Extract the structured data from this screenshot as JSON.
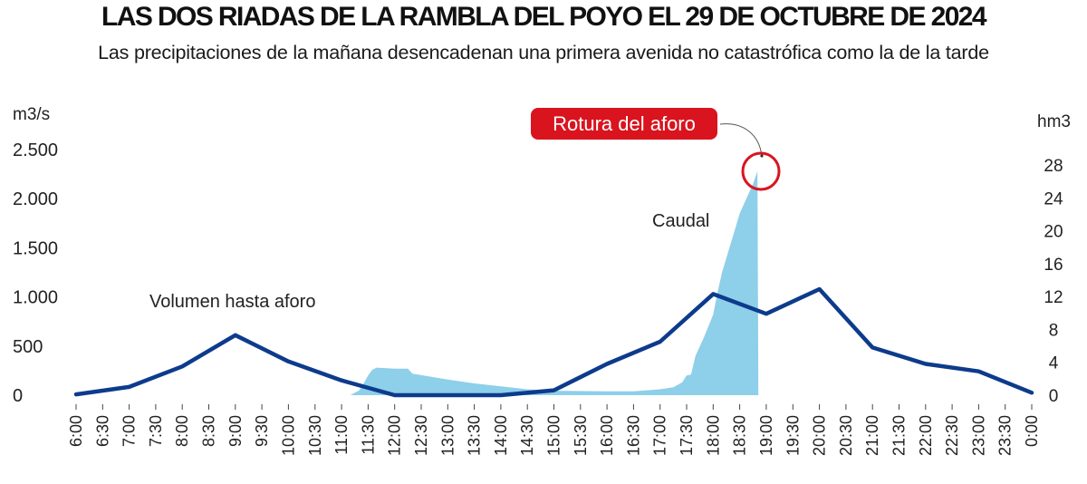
{
  "title": "LAS DOS RIADAS DE LA RAMBLA DEL POYO EL 29 DE OCTUBRE DE 2024",
  "subtitle": "Las precipitaciones de la mañana desencadenan una primera avenida no catastrófica como la de la tarde",
  "colors": {
    "caudal": "#8ecfe9",
    "volumen": "#0d3b8c",
    "alert": "#d9141e",
    "text": "#222222"
  },
  "chart_data": {
    "type": "area",
    "x_ticks": [
      "6:00",
      "6:30",
      "7:00",
      "7:30",
      "8:00",
      "8:30",
      "9:00",
      "9:30",
      "10:00",
      "10:30",
      "11:00",
      "11:30",
      "12:00",
      "12:30",
      "13:00",
      "13:30",
      "14:00",
      "14:30",
      "15:00",
      "15:30",
      "16:00",
      "16:30",
      "17:00",
      "17:30",
      "18:00",
      "18:30",
      "19:00",
      "19:30",
      "20:00",
      "20:30",
      "21:00",
      "21:30",
      "22:00",
      "22:30",
      "23:00",
      "23:30",
      "0:00"
    ],
    "y_left": {
      "label": "m3/s",
      "ticks": [
        "2.500",
        "2.000",
        "1.500",
        "1.000",
        "500",
        "0"
      ],
      "tick_values": [
        2500,
        2000,
        1500,
        1000,
        500,
        0
      ],
      "range": [
        0,
        2500
      ]
    },
    "y_right": {
      "label": "hm3",
      "ticks": [
        "28",
        "24",
        "20",
        "16",
        "12",
        "8",
        "4",
        "0"
      ],
      "tick_values": [
        28,
        24,
        20,
        16,
        12,
        8,
        4,
        0
      ],
      "range": [
        0,
        28
      ]
    },
    "series": [
      {
        "name": "Caudal",
        "axis": "left",
        "type": "area",
        "points": [
          [
            "11:10",
            0
          ],
          [
            "11:20",
            50
          ],
          [
            "11:25",
            120
          ],
          [
            "11:30",
            200
          ],
          [
            "11:35",
            260
          ],
          [
            "11:40",
            280
          ],
          [
            "12:00",
            270
          ],
          [
            "12:15",
            270
          ],
          [
            "12:20",
            220
          ],
          [
            "13:00",
            160
          ],
          [
            "13:30",
            120
          ],
          [
            "14:00",
            90
          ],
          [
            "14:30",
            60
          ],
          [
            "15:00",
            45
          ],
          [
            "16:00",
            40
          ],
          [
            "16:30",
            40
          ],
          [
            "17:00",
            60
          ],
          [
            "17:15",
            80
          ],
          [
            "17:25",
            130
          ],
          [
            "17:30",
            200
          ],
          [
            "17:35",
            210
          ],
          [
            "17:40",
            400
          ],
          [
            "17:50",
            600
          ],
          [
            "18:00",
            820
          ],
          [
            "18:05",
            1050
          ],
          [
            "18:10",
            1250
          ],
          [
            "18:15",
            1400
          ],
          [
            "18:20",
            1550
          ],
          [
            "18:25",
            1700
          ],
          [
            "18:30",
            1850
          ],
          [
            "18:35",
            1950
          ],
          [
            "18:40",
            2050
          ],
          [
            "18:45",
            2150
          ],
          [
            "18:50",
            2280
          ],
          [
            "18:51",
            0
          ]
        ]
      },
      {
        "name": "Volumen hasta aforo",
        "axis": "right",
        "type": "line",
        "points": [
          [
            "6:00",
            0.1
          ],
          [
            "7:00",
            1.0
          ],
          [
            "8:00",
            3.5
          ],
          [
            "9:00",
            7.3
          ],
          [
            "10:00",
            4.1
          ],
          [
            "11:00",
            1.8
          ],
          [
            "12:00",
            0
          ],
          [
            "14:00",
            0
          ],
          [
            "15:00",
            0.6
          ],
          [
            "16:00",
            3.8
          ],
          [
            "17:00",
            6.5
          ],
          [
            "18:00",
            12.3
          ],
          [
            "19:00",
            9.9
          ],
          [
            "20:00",
            12.9
          ],
          [
            "21:00",
            5.8
          ],
          [
            "22:00",
            3.8
          ],
          [
            "23:00",
            2.9
          ],
          [
            "0:00",
            0.3
          ]
        ]
      }
    ],
    "annotations": {
      "caudal_label": "Caudal",
      "volumen_label": "Volumen hasta aforo",
      "rotura_label": "Rotura del aforo",
      "rotura_at": [
        "18:50",
        2280
      ]
    },
    "grid": false
  }
}
